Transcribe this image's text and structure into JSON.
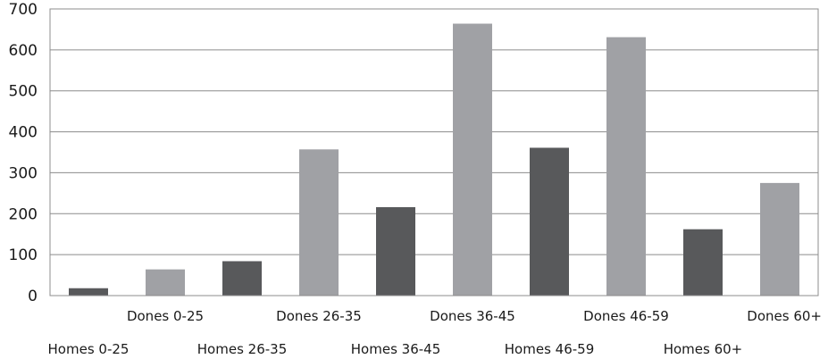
{
  "chart_data": {
    "type": "bar",
    "categories": [
      "Homes 0-25",
      "Dones 0-25",
      "Homes 26-35",
      "Dones 26-35",
      "Homes 36-45",
      "Dones 36-45",
      "Homes 46-59",
      "Dones 46-59",
      "Homes 60+",
      "Dones 60+"
    ],
    "values": [
      18,
      64,
      84,
      357,
      216,
      664,
      361,
      631,
      162,
      275
    ],
    "colors": [
      "#58595b",
      "#a0a1a5",
      "#58595b",
      "#a0a1a5",
      "#58595b",
      "#a0a1a5",
      "#58595b",
      "#a0a1a5",
      "#58595b",
      "#a0a1a5"
    ],
    "ylim": [
      0,
      700
    ],
    "yticks": [
      0,
      100,
      200,
      300,
      400,
      500,
      600,
      700
    ],
    "grid": true,
    "title": "",
    "xlabel": "",
    "ylabel": ""
  }
}
